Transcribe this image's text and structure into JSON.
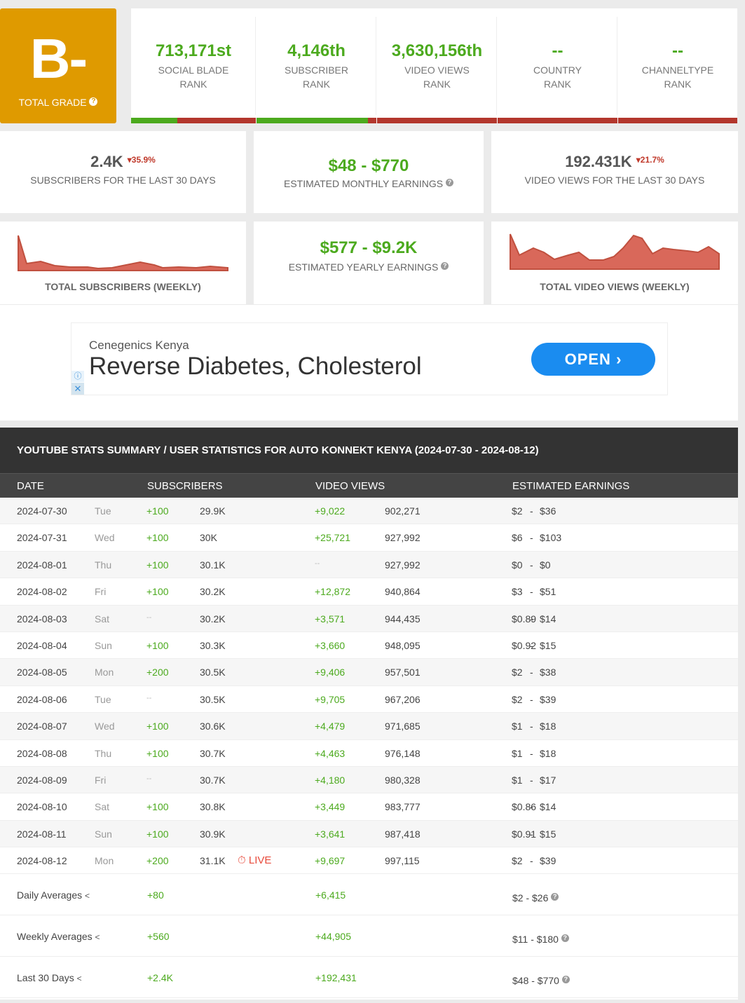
{
  "grade": {
    "letter": "B-",
    "label": "TOTAL GRADE",
    "help": "?"
  },
  "ranks": [
    {
      "value": "713,171st",
      "label1": "SOCIAL BLADE",
      "label2": "RANK",
      "fill": 0.37
    },
    {
      "value": "4,146th",
      "label1": "SUBSCRIBER",
      "label2": "RANK",
      "fill": 0.93
    },
    {
      "value": "3,630,156th",
      "label1": "VIDEO VIEWS",
      "label2": "RANK",
      "fill": 0.0
    },
    {
      "value": "--",
      "label1": "COUNTRY",
      "label2": "RANK",
      "fill": 0.0
    },
    {
      "value": "--",
      "label1": "CHANNELTYPE",
      "label2": "RANK",
      "fill": 0.0
    }
  ],
  "stats": {
    "subs30": {
      "value": "2.4K",
      "change": "35.9%",
      "label": "SUBSCRIBERS FOR THE LAST 30 DAYS"
    },
    "monthly": {
      "value": "$48  -  $770",
      "label": "ESTIMATED MONTHLY EARNINGS"
    },
    "views30": {
      "value": "192.431K",
      "change": "21.7%",
      "label": "VIDEO VIEWS FOR THE LAST 30 DAYS"
    },
    "yearly": {
      "value": "$577  -  $9.2K",
      "label": "ESTIMATED YEARLY EARNINGS"
    },
    "subs_chart_label": "TOTAL SUBSCRIBERS (WEEKLY)",
    "views_chart_label": "TOTAL VIDEO VIEWS (WEEKLY)"
  },
  "ad": {
    "advertiser": "Cenegenics Kenya",
    "headline": "Reverse Diabetes, Cholesterol",
    "cta": "OPEN"
  },
  "table": {
    "title": "YOUTUBE STATS SUMMARY / USER STATISTICS FOR AUTO KONNEKT KENYA (2024-07-30 - 2024-08-12)",
    "headers": {
      "date": "DATE",
      "subs": "SUBSCRIBERS",
      "views": "VIDEO VIEWS",
      "earn": "ESTIMATED EARNINGS"
    },
    "rows": [
      {
        "date": "2024-07-30",
        "day": "Tue",
        "sub_chg": "+100",
        "subs": "29.9K",
        "view_chg": "+9,022",
        "views": "902,271",
        "earn_lo": "$2",
        "earn_hi": "$36"
      },
      {
        "date": "2024-07-31",
        "day": "Wed",
        "sub_chg": "+100",
        "subs": "30K",
        "view_chg": "+25,721",
        "views": "927,992",
        "earn_lo": "$6",
        "earn_hi": "$103"
      },
      {
        "date": "2024-08-01",
        "day": "Thu",
        "sub_chg": "+100",
        "subs": "30.1K",
        "view_chg": "--",
        "views": "927,992",
        "earn_lo": "$0",
        "earn_hi": "$0"
      },
      {
        "date": "2024-08-02",
        "day": "Fri",
        "sub_chg": "+100",
        "subs": "30.2K",
        "view_chg": "+12,872",
        "views": "940,864",
        "earn_lo": "$3",
        "earn_hi": "$51"
      },
      {
        "date": "2024-08-03",
        "day": "Sat",
        "sub_chg": "--",
        "subs": "30.2K",
        "view_chg": "+3,571",
        "views": "944,435",
        "earn_lo": "$0.89",
        "earn_hi": "$14"
      },
      {
        "date": "2024-08-04",
        "day": "Sun",
        "sub_chg": "+100",
        "subs": "30.3K",
        "view_chg": "+3,660",
        "views": "948,095",
        "earn_lo": "$0.92",
        "earn_hi": "$15"
      },
      {
        "date": "2024-08-05",
        "day": "Mon",
        "sub_chg": "+200",
        "subs": "30.5K",
        "view_chg": "+9,406",
        "views": "957,501",
        "earn_lo": "$2",
        "earn_hi": "$38"
      },
      {
        "date": "2024-08-06",
        "day": "Tue",
        "sub_chg": "--",
        "subs": "30.5K",
        "view_chg": "+9,705",
        "views": "967,206",
        "earn_lo": "$2",
        "earn_hi": "$39"
      },
      {
        "date": "2024-08-07",
        "day": "Wed",
        "sub_chg": "+100",
        "subs": "30.6K",
        "view_chg": "+4,479",
        "views": "971,685",
        "earn_lo": "$1",
        "earn_hi": "$18"
      },
      {
        "date": "2024-08-08",
        "day": "Thu",
        "sub_chg": "+100",
        "subs": "30.7K",
        "view_chg": "+4,463",
        "views": "976,148",
        "earn_lo": "$1",
        "earn_hi": "$18"
      },
      {
        "date": "2024-08-09",
        "day": "Fri",
        "sub_chg": "--",
        "subs": "30.7K",
        "view_chg": "+4,180",
        "views": "980,328",
        "earn_lo": "$1",
        "earn_hi": "$17"
      },
      {
        "date": "2024-08-10",
        "day": "Sat",
        "sub_chg": "+100",
        "subs": "30.8K",
        "view_chg": "+3,449",
        "views": "983,777",
        "earn_lo": "$0.86",
        "earn_hi": "$14"
      },
      {
        "date": "2024-08-11",
        "day": "Sun",
        "sub_chg": "+100",
        "subs": "30.9K",
        "view_chg": "+3,641",
        "views": "987,418",
        "earn_lo": "$0.91",
        "earn_hi": "$15"
      },
      {
        "date": "2024-08-12",
        "day": "Mon",
        "sub_chg": "+200",
        "subs": "31.1K",
        "live": "LIVE",
        "view_chg": "+9,697",
        "views": "997,115",
        "earn_lo": "$2",
        "earn_hi": "$39"
      }
    ],
    "averages": [
      {
        "label": "Daily Averages",
        "subs": "+80",
        "views": "+6,415",
        "earn": "$2  -  $26"
      },
      {
        "label": "Weekly Averages",
        "subs": "+560",
        "views": "+44,905",
        "earn": "$11  -  $180"
      },
      {
        "label": "Last 30 Days",
        "subs": "+2.4K",
        "views": "+192,431",
        "earn": "$48  -  $770"
      }
    ]
  },
  "colors": {
    "grade": "#df9a00",
    "positive": "#4caa1e",
    "negative": "#b3372d",
    "chart": "#d9685a",
    "header": "#333333"
  }
}
